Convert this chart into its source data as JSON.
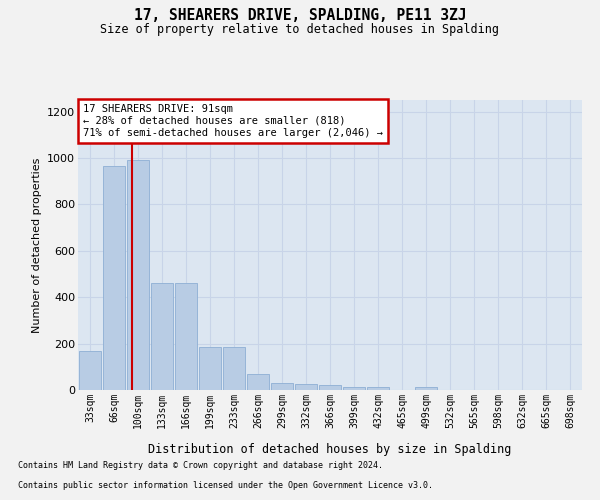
{
  "title": "17, SHEARERS DRIVE, SPALDING, PE11 3ZJ",
  "subtitle": "Size of property relative to detached houses in Spalding",
  "xlabel": "Distribution of detached houses by size in Spalding",
  "ylabel": "Number of detached properties",
  "categories": [
    "33sqm",
    "66sqm",
    "100sqm",
    "133sqm",
    "166sqm",
    "199sqm",
    "233sqm",
    "266sqm",
    "299sqm",
    "332sqm",
    "366sqm",
    "399sqm",
    "432sqm",
    "465sqm",
    "499sqm",
    "532sqm",
    "565sqm",
    "598sqm",
    "632sqm",
    "665sqm",
    "698sqm"
  ],
  "values": [
    170,
    965,
    990,
    460,
    460,
    185,
    185,
    70,
    30,
    25,
    20,
    15,
    12,
    0,
    15,
    0,
    0,
    0,
    0,
    0,
    0
  ],
  "bar_color": "#b8cce4",
  "bar_edge_color": "#8eafd4",
  "grid_color": "#c8d4e8",
  "bg_color": "#dce6f1",
  "fig_bg_color": "#f2f2f2",
  "annotation_text": "17 SHEARERS DRIVE: 91sqm\n← 28% of detached houses are smaller (818)\n71% of semi-detached houses are larger (2,046) →",
  "annotation_box_color": "#ffffff",
  "annotation_border_color": "#cc0000",
  "vline_color": "#cc0000",
  "ylim": [
    0,
    1250
  ],
  "yticks": [
    0,
    200,
    400,
    600,
    800,
    1000,
    1200
  ],
  "footnote1": "Contains HM Land Registry data © Crown copyright and database right 2024.",
  "footnote2": "Contains public sector information licensed under the Open Government Licence v3.0."
}
